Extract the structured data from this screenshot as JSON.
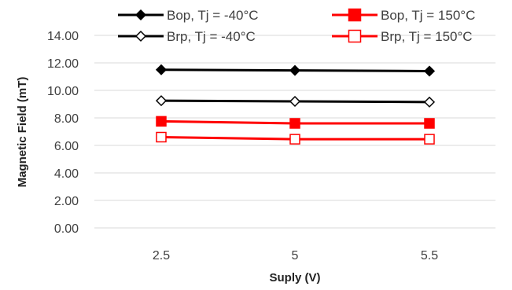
{
  "chart_data": {
    "type": "line",
    "categories": [
      "2.5",
      "5",
      "5.5"
    ],
    "xlabel": "Suply (V)",
    "ylabel": "Magnetic Field (mT)",
    "ylim": [
      0,
      14
    ],
    "yticks": [
      "0.00",
      "2.00",
      "4.00",
      "6.00",
      "8.00",
      "10.00",
      "12.00",
      "14.00"
    ],
    "grid": "horizontal",
    "legend_position": "top",
    "series": [
      {
        "name": "Bop, Tj = -40°C",
        "values": [
          11.5,
          11.45,
          11.4
        ],
        "color": "#000000",
        "marker": "diamond-filled"
      },
      {
        "name": "Brp, Tj = -40°C",
        "values": [
          9.25,
          9.2,
          9.15
        ],
        "color": "#000000",
        "marker": "diamond-open"
      },
      {
        "name": "Bop, Tj = 150°C",
        "values": [
          7.75,
          7.6,
          7.6
        ],
        "color": "#ff0000",
        "marker": "square-filled"
      },
      {
        "name": "Brp, Tj = 150°C",
        "values": [
          6.6,
          6.45,
          6.45
        ],
        "color": "#ff0000",
        "marker": "square-open"
      }
    ]
  }
}
